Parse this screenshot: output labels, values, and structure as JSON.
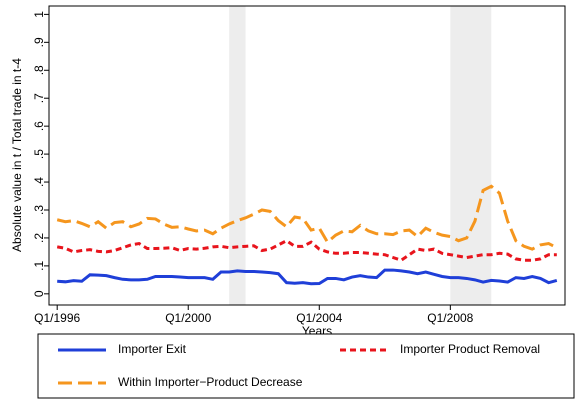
{
  "chart_data": {
    "type": "line",
    "y_label": "Absolute value in t / Total trade in t-4",
    "x_label": "Years",
    "x": [
      0,
      1,
      2,
      3,
      4,
      5,
      6,
      7,
      8,
      9,
      10,
      11,
      12,
      13,
      14,
      15,
      16,
      17,
      18,
      19,
      20,
      21,
      22,
      23,
      24,
      25,
      26,
      27,
      28,
      29,
      30,
      31,
      32,
      33,
      34,
      35,
      36,
      37,
      38,
      39,
      40,
      41,
      42,
      43,
      44,
      45,
      46,
      47,
      48,
      49,
      50,
      51,
      52,
      53,
      54,
      55,
      56,
      57,
      58,
      59,
      60,
      61
    ],
    "xlim": [
      -1,
      62
    ],
    "xticks": [
      {
        "value": 0,
        "label": "Q1/1996"
      },
      {
        "value": 16,
        "label": "Q1/2000"
      },
      {
        "value": 32,
        "label": "Q1/2004"
      },
      {
        "value": 48,
        "label": "Q1/2008"
      }
    ],
    "ylim": [
      -0.04,
      1.03
    ],
    "yticks": [
      0,
      {
        "value": 0.1,
        "label": ".1"
      },
      {
        "value": 0.2,
        "label": ".2"
      },
      {
        "value": 0.3,
        "label": ".3"
      },
      {
        "value": 0.4,
        "label": ".4"
      },
      {
        "value": 0.5,
        "label": ".5"
      },
      {
        "value": 0.6,
        "label": ".6"
      },
      {
        "value": 0.7,
        "label": ".7"
      },
      {
        "value": 0.8,
        "label": ".8"
      },
      {
        "value": 0.9,
        "label": ".9"
      },
      1
    ],
    "shaded_periods": [
      [
        21,
        23
      ],
      [
        48,
        53
      ]
    ],
    "shade_color": "#ededed",
    "grid": false,
    "series": [
      {
        "name": "Importer Exit",
        "color": "#1f3fd8",
        "dash": "none",
        "values": [
          0.045,
          0.043,
          0.047,
          0.045,
          0.068,
          0.067,
          0.065,
          0.058,
          0.052,
          0.05,
          0.05,
          0.052,
          0.062,
          0.062,
          0.062,
          0.06,
          0.058,
          0.058,
          0.058,
          0.052,
          0.078,
          0.078,
          0.082,
          0.08,
          0.08,
          0.078,
          0.076,
          0.072,
          0.04,
          0.038,
          0.04,
          0.036,
          0.037,
          0.055,
          0.055,
          0.05,
          0.06,
          0.065,
          0.06,
          0.058,
          0.085,
          0.085,
          0.082,
          0.078,
          0.072,
          0.078,
          0.07,
          0.062,
          0.058,
          0.058,
          0.055,
          0.05,
          0.042,
          0.048,
          0.046,
          0.042,
          0.058,
          0.055,
          0.062,
          0.055,
          0.04,
          0.048
        ]
      },
      {
        "name": "Importer Product Removal",
        "color": "#e8141c",
        "dash": "6 4",
        "values": [
          0.168,
          0.163,
          0.15,
          0.155,
          0.158,
          0.152,
          0.15,
          0.155,
          0.165,
          0.175,
          0.18,
          0.162,
          0.162,
          0.163,
          0.165,
          0.155,
          0.162,
          0.16,
          0.163,
          0.168,
          0.17,
          0.165,
          0.168,
          0.17,
          0.172,
          0.155,
          0.16,
          0.175,
          0.19,
          0.17,
          0.17,
          0.185,
          0.16,
          0.15,
          0.145,
          0.145,
          0.148,
          0.148,
          0.145,
          0.142,
          0.14,
          0.13,
          0.12,
          0.14,
          0.16,
          0.155,
          0.16,
          0.145,
          0.14,
          0.135,
          0.13,
          0.135,
          0.14,
          0.14,
          0.145,
          0.142,
          0.125,
          0.12,
          0.12,
          0.125,
          0.14,
          0.14
        ]
      },
      {
        "name": "Within Importer−Product Decrease",
        "color": "#f5961e",
        "dash": "14 6",
        "values": [
          0.265,
          0.258,
          0.262,
          0.252,
          0.24,
          0.258,
          0.235,
          0.255,
          0.258,
          0.24,
          0.25,
          0.27,
          0.268,
          0.25,
          0.238,
          0.24,
          0.232,
          0.225,
          0.228,
          0.215,
          0.235,
          0.25,
          0.262,
          0.272,
          0.285,
          0.3,
          0.295,
          0.262,
          0.24,
          0.275,
          0.27,
          0.228,
          0.235,
          0.185,
          0.21,
          0.225,
          0.222,
          0.245,
          0.225,
          0.215,
          0.215,
          0.212,
          0.225,
          0.228,
          0.205,
          0.235,
          0.22,
          0.21,
          0.205,
          0.19,
          0.2,
          0.26,
          0.37,
          0.385,
          0.36,
          0.26,
          0.19,
          0.17,
          0.16,
          0.175,
          0.18,
          0.165
        ]
      }
    ]
  }
}
